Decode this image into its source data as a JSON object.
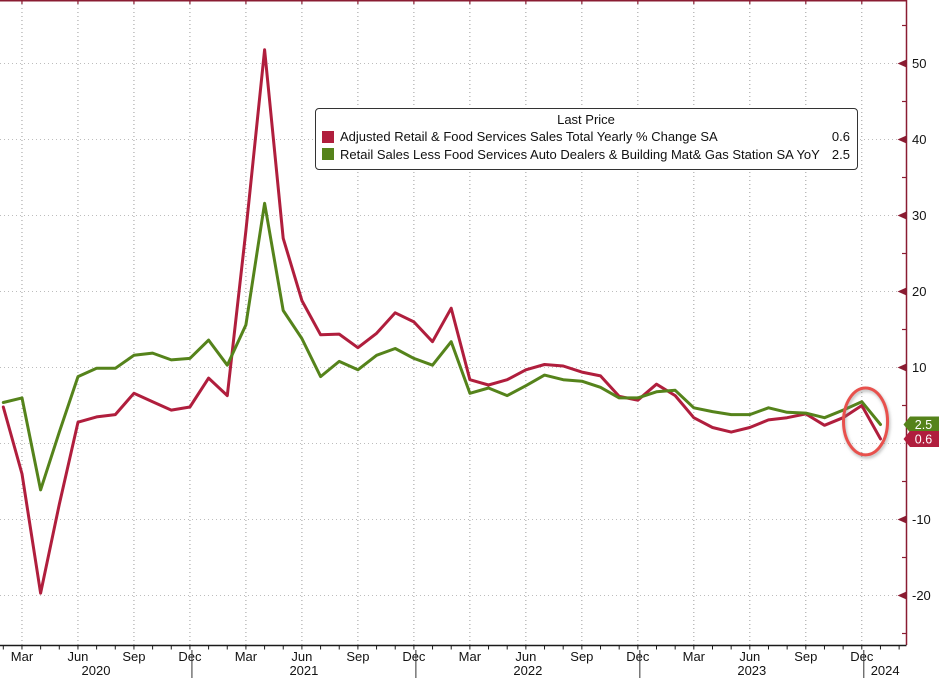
{
  "chart_data": {
    "type": "line",
    "x": [
      "Feb 2020",
      "Mar 2020",
      "Apr 2020",
      "May 2020",
      "Jun 2020",
      "Jul 2020",
      "Aug 2020",
      "Sep 2020",
      "Oct 2020",
      "Nov 2020",
      "Dec 2020",
      "Jan 2021",
      "Feb 2021",
      "Mar 2021",
      "Apr 2021",
      "May 2021",
      "Jun 2021",
      "Jul 2021",
      "Aug 2021",
      "Sep 2021",
      "Oct 2021",
      "Nov 2021",
      "Dec 2021",
      "Jan 2022",
      "Feb 2022",
      "Mar 2022",
      "Apr 2022",
      "May 2022",
      "Jun 2022",
      "Jul 2022",
      "Aug 2022",
      "Sep 2022",
      "Oct 2022",
      "Nov 2022",
      "Dec 2022",
      "Jan 2023",
      "Feb 2023",
      "Mar 2023",
      "Apr 2023",
      "May 2023",
      "Jun 2023",
      "Jul 2023",
      "Aug 2023",
      "Sep 2023",
      "Oct 2023",
      "Nov 2023",
      "Dec 2023",
      "Jan 2024"
    ],
    "series": [
      {
        "name": "Adjusted Retail & Food Services Sales Total Yearly % Change SA",
        "color": "#b01e3d",
        "last_price": "0.6",
        "values": [
          4.8,
          -4.0,
          -19.7,
          -8.0,
          2.8,
          3.5,
          3.8,
          6.6,
          5.5,
          4.4,
          4.8,
          8.6,
          6.3,
          28.0,
          51.8,
          27.0,
          18.8,
          14.3,
          14.4,
          12.6,
          14.5,
          17.2,
          16.0,
          13.4,
          17.8,
          8.4,
          7.7,
          8.4,
          9.7,
          10.4,
          10.2,
          9.4,
          8.9,
          6.2,
          5.7,
          7.8,
          6.3,
          3.4,
          2.1,
          1.5,
          2.1,
          3.1,
          3.4,
          3.9,
          2.4,
          3.4,
          5.0,
          0.6
        ]
      },
      {
        "name": "Retail Sales Less Food Services Auto Dealers & Building Mat& Gas Station SA YoY",
        "color": "#55831b",
        "last_price": "2.5",
        "values": [
          5.4,
          6.0,
          -6.1,
          1.5,
          8.8,
          9.9,
          9.9,
          11.6,
          11.9,
          11.0,
          11.2,
          13.6,
          10.3,
          15.6,
          31.6,
          17.5,
          13.8,
          8.8,
          10.8,
          9.7,
          11.6,
          12.5,
          11.2,
          10.3,
          13.4,
          6.6,
          7.3,
          6.3,
          7.6,
          9.0,
          8.4,
          8.2,
          7.4,
          6.0,
          6.0,
          6.8,
          7.0,
          4.7,
          4.2,
          3.8,
          3.8,
          4.7,
          4.1,
          4.0,
          3.4,
          4.4,
          5.5,
          2.5
        ]
      }
    ],
    "legend": {
      "title": "Last Price",
      "position": "top-center"
    },
    "y_axis": {
      "side": "right",
      "visible_range": [
        -26.5,
        58.4
      ],
      "gridline_values": [
        -20,
        -10,
        0,
        10,
        20,
        30,
        40,
        50
      ],
      "labeled_values": [
        -20,
        -10,
        10,
        20,
        30,
        40,
        50
      ],
      "minor_tick_step": 5,
      "zero_label_hidden_by_badges": true
    },
    "x_axis": {
      "quarter_ticks": [
        {
          "label": "Mar",
          "i": 1
        },
        {
          "label": "Jun",
          "i": 4
        },
        {
          "label": "Sep",
          "i": 7
        },
        {
          "label": "Dec",
          "i": 10
        },
        {
          "label": "Mar",
          "i": 13
        },
        {
          "label": "Jun",
          "i": 16
        },
        {
          "label": "Sep",
          "i": 19
        },
        {
          "label": "Dec",
          "i": 22
        },
        {
          "label": "Mar",
          "i": 25
        },
        {
          "label": "Jun",
          "i": 28
        },
        {
          "label": "Sep",
          "i": 31
        },
        {
          "label": "Dec",
          "i": 34
        },
        {
          "label": "Mar",
          "i": 37
        },
        {
          "label": "Jun",
          "i": 40
        },
        {
          "label": "Sep",
          "i": 43
        },
        {
          "label": "Dec",
          "i": 46
        }
      ],
      "year_labels": [
        "2020",
        "2021",
        "2022",
        "2023",
        "2024"
      ],
      "dec_indices": [
        10,
        22,
        34,
        46
      ]
    },
    "grid": "dotted",
    "annotation": {
      "shape": "ellipse",
      "highlights": "Dec 2023 - Jan 2024 final data points",
      "center_month_index": 46.2,
      "center_value": 2.9,
      "rx_months": 1.18,
      "ry_units": 4.4,
      "color": "#e8514d"
    },
    "colors": {
      "axis": "#8a1c32",
      "grid": "#bdbdbd",
      "background": "#ffffff"
    }
  }
}
